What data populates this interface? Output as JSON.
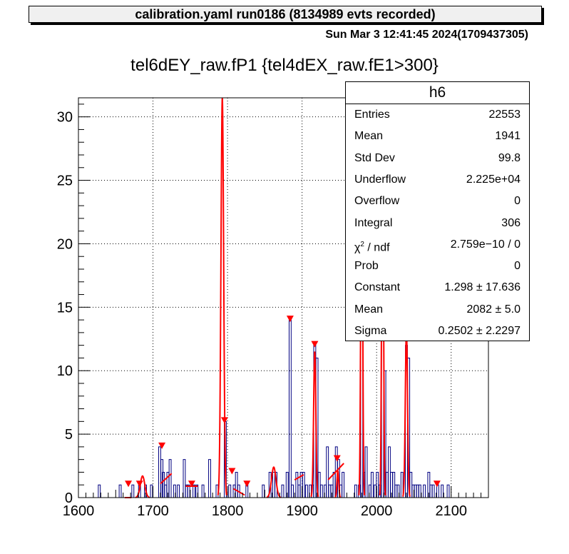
{
  "header": {
    "banner": "calibration.yaml  run0186 (8134989 evts recorded)",
    "date": "Sun Mar  3 12:41:45 2024(1709437305)"
  },
  "chart_data": {
    "type": "bar",
    "title": "tel6dEY_raw.fP1 {tel4dEX_raw.fE1>300}",
    "xlabel": "",
    "ylabel": "",
    "xlim": [
      1600,
      2150
    ],
    "ylim": [
      0,
      31.5
    ],
    "x_ticks": [
      "1600",
      "1700",
      "1800",
      "1900",
      "2000",
      "2100"
    ],
    "y_ticks": [
      "0",
      "5",
      "10",
      "15",
      "20",
      "25",
      "30"
    ],
    "grid": true,
    "bin_width": 2.75,
    "colors": {
      "histogram": "#000080",
      "fit": "#ff0000",
      "markers": "#ff0000"
    },
    "histogram_bins": [
      [
        1628,
        1
      ],
      [
        1656,
        1
      ],
      [
        1673,
        1
      ],
      [
        1682,
        1
      ],
      [
        1690,
        1
      ],
      [
        1698,
        1
      ],
      [
        1709,
        4
      ],
      [
        1712,
        3
      ],
      [
        1714,
        2
      ],
      [
        1717,
        1
      ],
      [
        1720,
        2
      ],
      [
        1723,
        3
      ],
      [
        1729,
        1
      ],
      [
        1734,
        1
      ],
      [
        1742,
        3
      ],
      [
        1745,
        1
      ],
      [
        1748,
        1
      ],
      [
        1755,
        1
      ],
      [
        1759,
        1
      ],
      [
        1767,
        1
      ],
      [
        1776,
        3
      ],
      [
        1786,
        1
      ],
      [
        1797,
        6
      ],
      [
        1803,
        1
      ],
      [
        1809,
        1
      ],
      [
        1812,
        2
      ],
      [
        1815,
        1
      ],
      [
        1826,
        1
      ],
      [
        1848,
        1
      ],
      [
        1857,
        2
      ],
      [
        1862,
        2
      ],
      [
        1865,
        2
      ],
      [
        1874,
        1
      ],
      [
        1880,
        2
      ],
      [
        1884,
        14
      ],
      [
        1887,
        1
      ],
      [
        1893,
        2
      ],
      [
        1896,
        1
      ],
      [
        1899,
        2
      ],
      [
        1902,
        2
      ],
      [
        1906,
        1
      ],
      [
        1911,
        1
      ],
      [
        1914,
        1
      ],
      [
        1917,
        12
      ],
      [
        1920,
        11
      ],
      [
        1923,
        2
      ],
      [
        1926,
        1
      ],
      [
        1931,
        1
      ],
      [
        1934,
        4
      ],
      [
        1937,
        1
      ],
      [
        1940,
        1
      ],
      [
        1943,
        2
      ],
      [
        1946,
        4
      ],
      [
        1949,
        3
      ],
      [
        1952,
        1
      ],
      [
        1955,
        2
      ],
      [
        1972,
        1
      ],
      [
        1977,
        1
      ],
      [
        1980,
        30
      ],
      [
        1983,
        2
      ],
      [
        1986,
        4
      ],
      [
        1991,
        1
      ],
      [
        1994,
        2
      ],
      [
        1998,
        1
      ],
      [
        2001,
        2
      ],
      [
        2004,
        1
      ],
      [
        2008,
        30
      ],
      [
        2011,
        10
      ],
      [
        2014,
        2
      ],
      [
        2017,
        4
      ],
      [
        2020,
        2
      ],
      [
        2023,
        2
      ],
      [
        2026,
        1
      ],
      [
        2029,
        1
      ],
      [
        2034,
        2
      ],
      [
        2040,
        12
      ],
      [
        2043,
        11
      ],
      [
        2046,
        2
      ],
      [
        2049,
        1
      ],
      [
        2052,
        1
      ],
      [
        2055,
        1
      ],
      [
        2058,
        1
      ],
      [
        2064,
        1
      ],
      [
        2070,
        2
      ],
      [
        2073,
        1
      ],
      [
        2076,
        1
      ],
      [
        2082,
        1
      ],
      [
        2088,
        1
      ],
      [
        2096,
        1
      ]
    ],
    "markers": [
      [
        1667,
        1.0
      ],
      [
        1682,
        1.0
      ],
      [
        1712,
        4.0
      ],
      [
        1752,
        1.0
      ],
      [
        1796,
        6.0
      ],
      [
        1806,
        2.0
      ],
      [
        1826,
        1.0
      ],
      [
        1884,
        14.0
      ],
      [
        1917,
        12.0
      ],
      [
        1947,
        3.0
      ],
      [
        2081,
        1.0
      ]
    ],
    "fit_peaks": [
      [
        1793,
        31.5,
        1.8
      ],
      [
        1980,
        30.0,
        1.2
      ],
      [
        2008,
        30.0,
        1.2
      ],
      [
        2040,
        13.2,
        1.5
      ],
      [
        1917,
        11.5,
        1.5
      ],
      [
        1862,
        2.4,
        3.0
      ],
      [
        1686,
        1.7,
        3.0
      ],
      [
        1948,
        2.1,
        1.2
      ]
    ],
    "fit_segments": [
      [
        [
          1710,
          1.1
        ],
        [
          1725,
          1.9
        ]
      ],
      [
        [
          1890,
          1.4
        ],
        [
          1902,
          1.8
        ]
      ],
      [
        [
          1935,
          1.4
        ],
        [
          1956,
          2.7
        ]
      ],
      [
        [
          1808,
          0.7
        ],
        [
          1823,
          0.2
        ]
      ],
      [
        [
          1662,
          0
        ],
        [
          1671,
          0
        ]
      ],
      [
        [
          1744,
          0.9
        ],
        [
          1760,
          0.9
        ]
      ]
    ]
  },
  "stats": {
    "name": "h6",
    "rows": [
      {
        "key": "Entries",
        "value": "22553"
      },
      {
        "key": "Mean",
        "value": "1941"
      },
      {
        "key": "Std Dev",
        "value": "99.8"
      },
      {
        "key": "Underflow",
        "value": "2.225e+04"
      },
      {
        "key": "Overflow",
        "value": "0"
      },
      {
        "key": "Integral",
        "value": "306"
      },
      {
        "key": "χ2 / ndf",
        "value": "2.759e−10 / 0"
      },
      {
        "key": "Prob",
        "value": "0"
      },
      {
        "key": "Constant",
        "value": "1.298 ± 17.636"
      },
      {
        "key": "Mean",
        "value": "2082 ± 5.0"
      },
      {
        "key": "Sigma",
        "value": "0.2502 ± 2.2297"
      }
    ]
  }
}
